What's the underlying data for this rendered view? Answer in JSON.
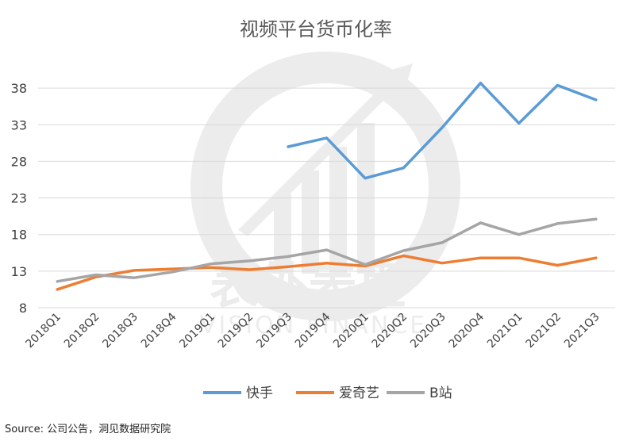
{
  "chart_data": {
    "type": "line",
    "title": "视频平台货币化率",
    "xlabel": "",
    "ylabel": "",
    "categories": [
      "2018Q1",
      "2018Q2",
      "2018Q3",
      "2018Q4",
      "2019Q1",
      "2019Q2",
      "2019Q3",
      "2019Q4",
      "2020Q1",
      "2020Q2",
      "2020Q3",
      "2020Q4",
      "2021Q1",
      "2021Q2",
      "2021Q3"
    ],
    "yticks": [
      8,
      13,
      18,
      23,
      28,
      33,
      38
    ],
    "ylim": [
      8,
      43
    ],
    "grid": true,
    "legend_position": "bottom",
    "series": [
      {
        "name": "快手",
        "color": "#5b9bd5",
        "values": [
          null,
          null,
          null,
          null,
          null,
          null,
          30.0,
          31.2,
          25.7,
          27.1,
          32.6,
          38.7,
          33.2,
          38.4,
          36.4
        ]
      },
      {
        "name": "爱奇艺",
        "color": "#ed7d31",
        "values": [
          10.5,
          12.2,
          13.1,
          13.3,
          13.5,
          13.2,
          13.6,
          14.1,
          13.7,
          15.1,
          14.1,
          14.8,
          14.8,
          13.8,
          14.8
        ]
      },
      {
        "name": "B站",
        "color": "#a5a5a5",
        "values": [
          11.6,
          12.5,
          12.1,
          12.9,
          14.0,
          14.4,
          15.0,
          15.9,
          13.9,
          15.8,
          16.9,
          19.6,
          18.0,
          19.5,
          20.1
        ]
      }
    ]
  },
  "source": "Source:  公司公告，洞见数据研究院",
  "watermark": {
    "line1": "表外表里",
    "line2": "VISION FINANCE"
  }
}
